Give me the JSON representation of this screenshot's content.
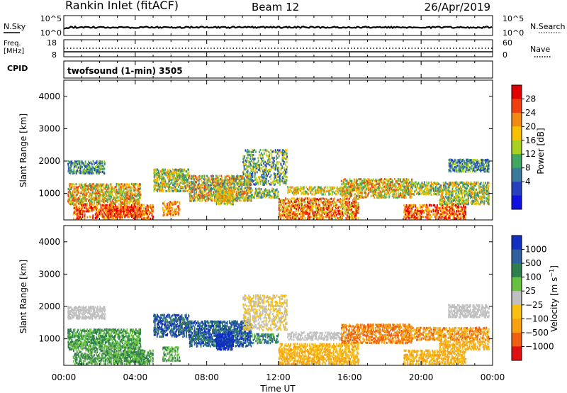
{
  "header": {
    "station": "Rankin Inlet (fitACF)",
    "beam": "Beam 12",
    "date": "26/Apr/2019"
  },
  "panels": {
    "nsky": {
      "left_label": "N.Sky",
      "right_label": "N.Search",
      "left_ticks": [
        "10^5",
        "10^0"
      ],
      "right_ticks": [
        "10^5",
        "10^0"
      ]
    },
    "freq": {
      "left_label_1": "Freq.",
      "left_label_2": "[MHz]",
      "right_label": "Nave",
      "left_ticks": [
        "18",
        "8"
      ],
      "right_ticks": [
        "60",
        "0"
      ]
    },
    "cpid": {
      "label": "CPID",
      "text": "twofsound (1-min) 3505"
    }
  },
  "chart_data": [
    {
      "type": "heatmap",
      "name": "power-panel",
      "ylabel": "Slant Range [km]",
      "xlabel": "",
      "y_ticks": [
        1000,
        2000,
        3000,
        4000
      ],
      "ylim": [
        180,
        4500
      ],
      "xlim_hours": [
        0,
        24
      ],
      "colorbar": {
        "label": "Power [dB]",
        "ticks": [
          "28",
          "24",
          "20",
          "16",
          "12",
          "8",
          "4"
        ],
        "colors": [
          "#e00000",
          "#f04010",
          "#f08a10",
          "#f8c000",
          "#a8d020",
          "#40a860",
          "#3a7a9a",
          "#2840c0",
          "#1010e0"
        ]
      }
    },
    {
      "type": "heatmap",
      "name": "velocity-panel",
      "ylabel": "Slant Range [km]",
      "xlabel": "Time UT",
      "y_ticks": [
        1000,
        2000,
        3000,
        4000
      ],
      "ylim": [
        180,
        4500
      ],
      "xlim_hours": [
        0,
        24
      ],
      "x_tick_labels": [
        "00:00",
        "04:00",
        "08:00",
        "12:00",
        "16:00",
        "20:00",
        "00:00"
      ],
      "colorbar": {
        "label": "Velocity [m s^-1]",
        "ticks": [
          "1000",
          "500",
          "100",
          "25",
          "−25",
          "−100",
          "−500",
          "−1000"
        ],
        "colors": [
          "#1030c0",
          "#3060a0",
          "#2e7f4f",
          "#68c040",
          "#c0c0c0",
          "#f8c010",
          "#f8a010",
          "#f06010",
          "#e01010"
        ]
      }
    }
  ]
}
